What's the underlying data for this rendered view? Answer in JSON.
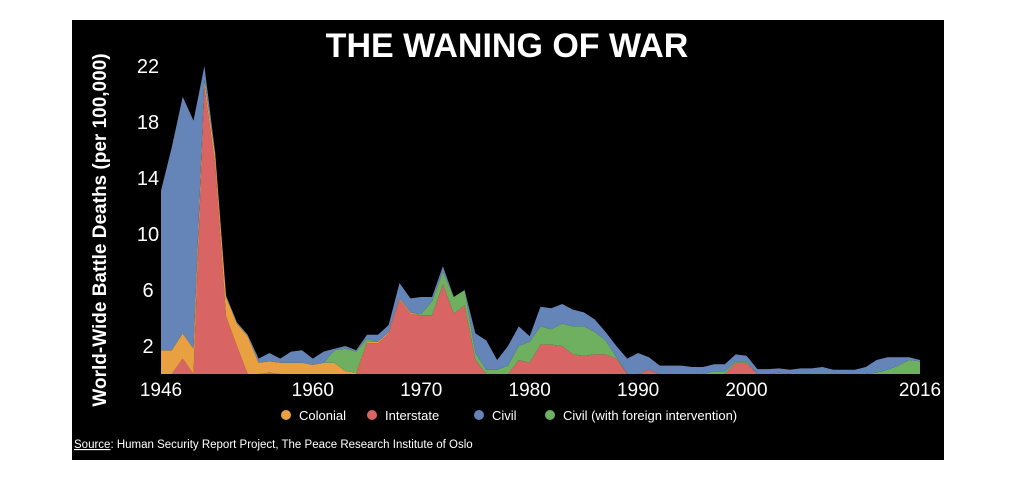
{
  "chart_data": {
    "type": "area",
    "stacked": true,
    "title": "THE WANING OF WAR",
    "xlabel": "",
    "ylabel": "World-Wide Battle Deaths (per 100,000)",
    "xlim": [
      1946,
      2016
    ],
    "ylim": [
      0,
      22.5
    ],
    "x_ticks": [
      1946,
      1960,
      1970,
      1980,
      1990,
      2000,
      2016
    ],
    "y_ticks": [
      2,
      6,
      10,
      14,
      18,
      22
    ],
    "legend_position": "bottom",
    "x_start": 1946,
    "x_end": 2016,
    "series": [
      {
        "name": "Interstate",
        "color": "#d96464",
        "values": [
          0,
          0,
          1.1,
          0,
          20.5,
          15,
          4.1,
          2,
          0,
          0,
          0.1,
          0,
          0,
          0,
          0,
          0,
          0,
          0,
          0,
          2.2,
          2.2,
          2.9,
          5.3,
          4.3,
          4.2,
          4.2,
          6.4,
          4.3,
          4.9,
          1.0,
          0,
          0,
          0,
          1.0,
          0.8,
          2.1,
          2.1,
          2.0,
          1.4,
          1.3,
          1.4,
          1.4,
          1.1,
          0,
          0,
          0.3,
          0,
          0,
          0,
          0,
          0,
          0,
          0,
          0.8,
          0.8,
          0,
          0,
          0.1,
          0,
          0,
          0,
          0,
          0,
          0,
          0,
          0,
          0,
          0,
          0,
          0,
          0
        ]
      },
      {
        "name": "Colonial",
        "color": "#e8a040",
        "values": [
          1.7,
          1.7,
          1.8,
          1.8,
          0.5,
          0.7,
          1.4,
          1.6,
          2.7,
          0.8,
          0.8,
          0.8,
          0.8,
          0.8,
          0.65,
          0.8,
          0.8,
          0.2,
          0.1,
          0.1,
          0.1,
          0.1,
          0.1,
          0.1,
          0,
          0,
          0,
          0,
          0,
          0,
          0,
          0,
          0,
          0,
          0,
          0,
          0,
          0,
          0,
          0,
          0,
          0,
          0,
          0,
          0,
          0,
          0,
          0,
          0,
          0,
          0,
          0,
          0,
          0,
          0,
          0,
          0,
          0,
          0,
          0,
          0,
          0,
          0,
          0,
          0,
          0,
          0,
          0,
          0,
          0,
          0
        ]
      },
      {
        "name": "Civil (with foreign intervention)",
        "color": "#6fb060",
        "values": [
          0,
          0,
          0,
          0,
          0,
          0,
          0,
          0,
          0,
          0,
          0,
          0,
          0,
          0,
          0,
          0,
          0.9,
          1.6,
          1.5,
          0.2,
          0,
          0,
          0,
          0,
          0.1,
          1.0,
          0.9,
          1.2,
          1.1,
          0.5,
          0.3,
          0.3,
          0.6,
          1.0,
          1.5,
          1.3,
          1.1,
          1.6,
          2.0,
          2.1,
          1.6,
          1.0,
          0.1,
          0,
          0,
          0,
          0,
          0,
          0,
          0,
          0,
          0.2,
          0.2,
          0.1,
          0.1,
          0,
          0,
          0,
          0,
          0,
          0,
          0,
          0,
          0,
          0,
          0,
          0.1,
          0.3,
          0.6,
          1.0,
          0.9
        ]
      },
      {
        "name": "Civil",
        "color": "#6585b8",
        "values": [
          11.4,
          14.5,
          16.9,
          16.3,
          1.0,
          0.1,
          0.1,
          0.1,
          0.1,
          0.3,
          0.6,
          0.3,
          0.8,
          0.9,
          0.45,
          0.8,
          0.1,
          0.2,
          0.1,
          0.3,
          0.5,
          0.5,
          1.1,
          1.0,
          1.2,
          0.3,
          0.4,
          0,
          0,
          1.4,
          2.1,
          0.7,
          1.4,
          1.4,
          0.4,
          1.4,
          1.5,
          1.4,
          1.2,
          1.0,
          0.9,
          0.6,
          0.8,
          1.1,
          1.5,
          0.9,
          0.6,
          0.6,
          0.6,
          0.5,
          0.5,
          0.5,
          0.5,
          0.5,
          0.4,
          0.35,
          0.35,
          0.3,
          0.3,
          0.4,
          0.4,
          0.5,
          0.3,
          0.3,
          0.3,
          0.5,
          0.9,
          0.9,
          0.6,
          0.2,
          0.1
        ]
      }
    ],
    "legend": [
      {
        "label": "Colonial",
        "color": "#e8a040"
      },
      {
        "label": "Interstate",
        "color": "#d96464"
      },
      {
        "label": "Civil",
        "color": "#6585b8"
      },
      {
        "label": "Civil (with foreign intervention)",
        "color": "#6fb060"
      }
    ]
  },
  "source": {
    "label": "Source",
    "text": ": Human Security Report Project, The Peace Research Institute of Oslo"
  }
}
